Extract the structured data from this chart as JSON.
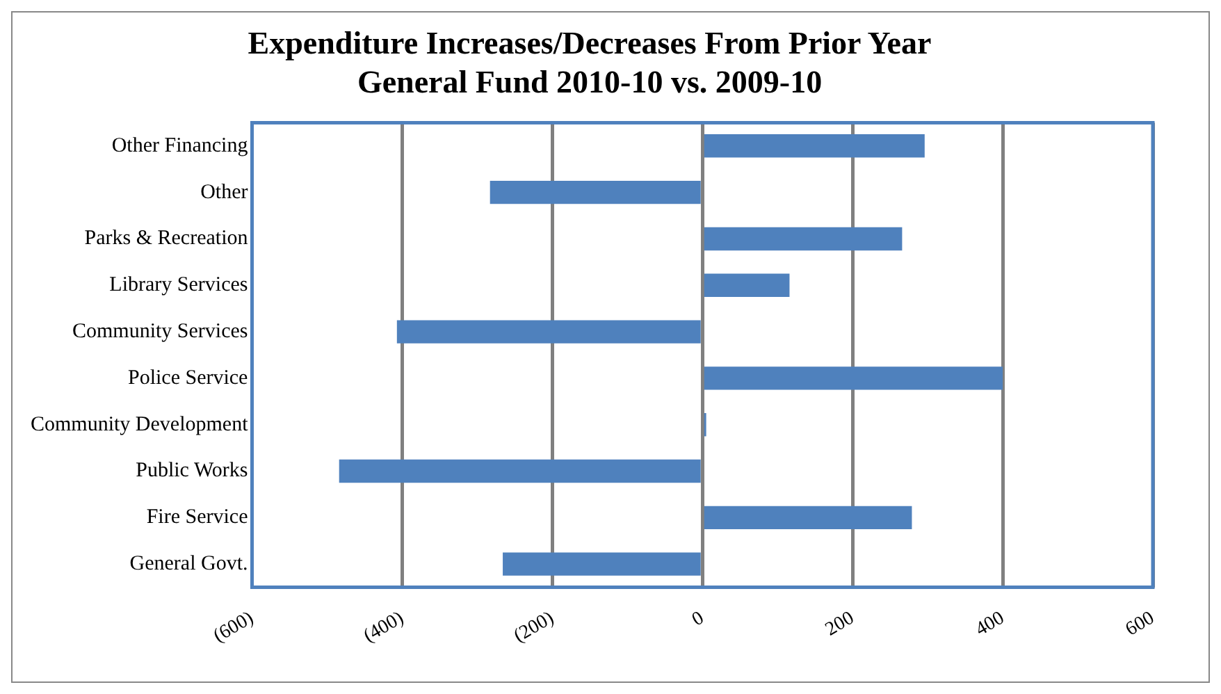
{
  "chart_data": {
    "type": "bar",
    "orientation": "horizontal",
    "title": "Expenditure Increases/Decreases From Prior Year\nGeneral Fund 2010-10 vs. 2009-10",
    "categories": [
      "Other Financing",
      "Other",
      "Parks & Recreation",
      "Library Services",
      "Community Services",
      "Police Service",
      "Community Development",
      "Public Works",
      "Fire Service",
      "General Govt."
    ],
    "values": [
      296,
      -283,
      266,
      116,
      -407,
      400,
      5,
      -484,
      279,
      -266
    ],
    "color": "#4f81bd",
    "xlim": [
      -600,
      600
    ],
    "xticks": [
      {
        "value": -600,
        "label": "(600)"
      },
      {
        "value": -400,
        "label": "(400)"
      },
      {
        "value": -200,
        "label": "(200)"
      },
      0,
      200,
      400,
      600
    ],
    "grid": "x",
    "legend": false
  }
}
